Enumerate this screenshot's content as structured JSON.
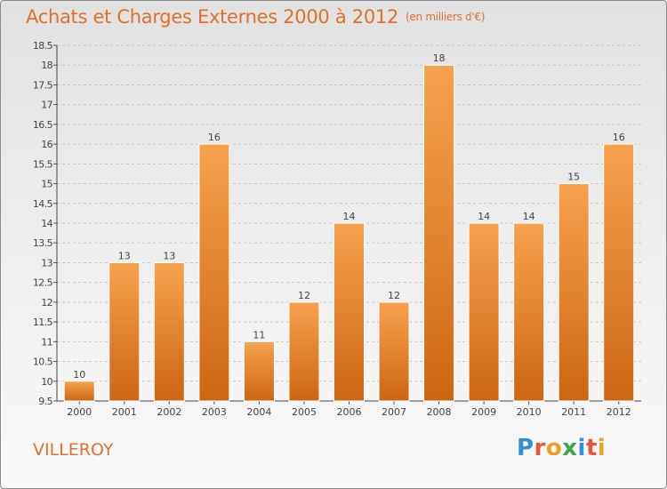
{
  "title": "Achats et Charges Externes 2000 à 2012",
  "unit": "(en milliers d'€)",
  "commune": "VILLEROY",
  "logo": {
    "letters": [
      "P",
      "r",
      "o",
      "x",
      "i",
      "t",
      "i"
    ],
    "colors": [
      "#2f8fd8",
      "#e8553a",
      "#f0a020",
      "#3aa84a",
      "#2f8fd8",
      "#e8553a",
      "#f0a020"
    ]
  },
  "chart_data": {
    "type": "bar",
    "title": "Achats et Charges Externes 2000 à 2012",
    "subtitle": "(en milliers d'€)",
    "categories": [
      "2000",
      "2001",
      "2002",
      "2003",
      "2004",
      "2005",
      "2006",
      "2007",
      "2008",
      "2009",
      "2010",
      "2011",
      "2012"
    ],
    "values": [
      10,
      13,
      13,
      16,
      11,
      12,
      14,
      12,
      18,
      14,
      14,
      15,
      16
    ],
    "data_labels": [
      "10",
      "13",
      "13",
      "16",
      "11",
      "12",
      "14",
      "12",
      "18",
      "14",
      "14",
      "15",
      "16"
    ],
    "ylim": [
      9.5,
      18.5
    ],
    "yticks": [
      "9.5",
      "10",
      "10.5",
      "11",
      "11.5",
      "12",
      "12.5",
      "13",
      "13.5",
      "14",
      "14.5",
      "15",
      "15.5",
      "16",
      "16.5",
      "17",
      "17.5",
      "18",
      "18.5"
    ],
    "grid": true,
    "bar_color": "#f28c2a",
    "xlabel": "",
    "ylabel": ""
  }
}
